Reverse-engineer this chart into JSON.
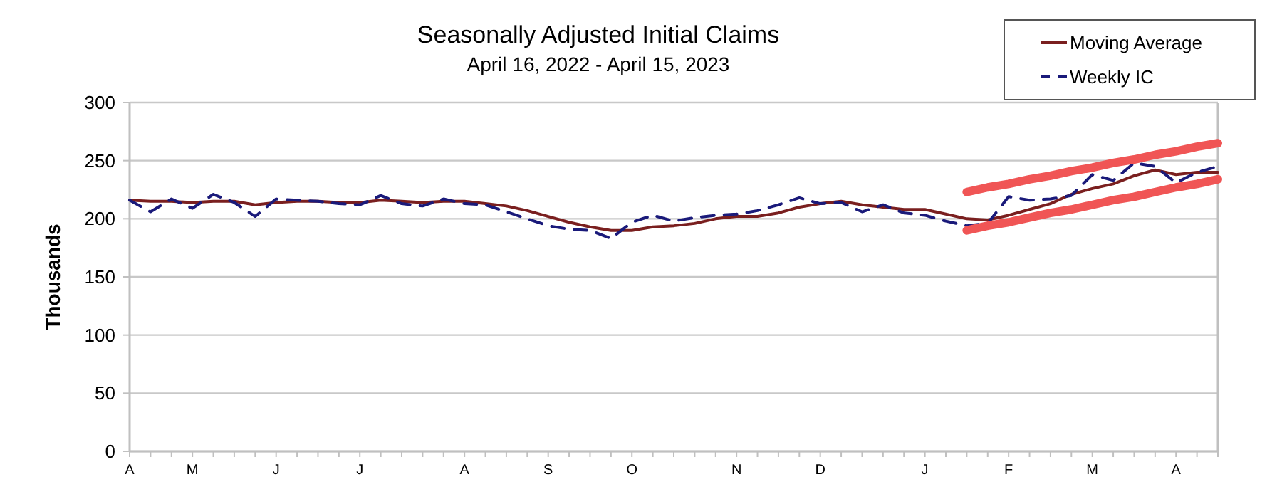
{
  "chart_data": {
    "type": "line",
    "title": "Seasonally Adjusted Initial Claims",
    "subtitle": "April 16, 2022 - April 15, 2023",
    "ylabel": "Thousands",
    "categories": [
      "A",
      null,
      null,
      "M",
      null,
      null,
      null,
      "J",
      null,
      null,
      null,
      "J",
      null,
      null,
      null,
      null,
      "A",
      null,
      null,
      null,
      "S",
      null,
      null,
      null,
      "O",
      null,
      null,
      null,
      null,
      "N",
      null,
      null,
      null,
      "D",
      null,
      null,
      null,
      null,
      "J",
      null,
      null,
      null,
      "F",
      null,
      null,
      null,
      "M",
      null,
      null,
      null,
      "A",
      null,
      null
    ],
    "ylim": [
      0,
      300
    ],
    "yticks": [
      0,
      50,
      100,
      150,
      200,
      250,
      300
    ],
    "grid": "y",
    "legend": "top right",
    "series": [
      {
        "name": "Moving Average",
        "color": "#7a1f1f",
        "line_style": "solid",
        "values": [
          216,
          215,
          215,
          214,
          215,
          215,
          212,
          214,
          215,
          215,
          214,
          214,
          216,
          215,
          214,
          215,
          215,
          213,
          211,
          207,
          202,
          197,
          193,
          190,
          190,
          193,
          194,
          196,
          200,
          202,
          202,
          205,
          210,
          213,
          215,
          212,
          210,
          208,
          208,
          204,
          200,
          199,
          203,
          208,
          213,
          221,
          226,
          230,
          237,
          242,
          238,
          240,
          240
        ]
      },
      {
        "name": "Weekly IC",
        "color": "#1a1a7a",
        "line_style": "dashed",
        "values": [
          216,
          206,
          217,
          209,
          221,
          214,
          202,
          217,
          216,
          215,
          213,
          212,
          220,
          213,
          211,
          217,
          213,
          212,
          206,
          200,
          194,
          191,
          190,
          183,
          197,
          203,
          198,
          201,
          203,
          204,
          207,
          212,
          218,
          213,
          214,
          206,
          212,
          205,
          203,
          198,
          194,
          196,
          219,
          216,
          217,
          220,
          238,
          233,
          248,
          245,
          231,
          240,
          245
        ]
      },
      {
        "color": "#f05555",
        "line_style": "solid",
        "values": [
          null,
          null,
          null,
          null,
          null,
          null,
          null,
          null,
          null,
          null,
          null,
          null,
          null,
          null,
          null,
          null,
          null,
          null,
          null,
          null,
          null,
          null,
          null,
          null,
          null,
          null,
          null,
          null,
          null,
          null,
          null,
          null,
          null,
          null,
          null,
          null,
          null,
          null,
          null,
          null,
          223,
          227,
          230,
          234,
          237,
          241,
          244,
          248,
          251,
          255,
          258,
          262,
          265
        ]
      },
      {
        "color": "#f05555",
        "line_style": "solid",
        "values": [
          null,
          null,
          null,
          null,
          null,
          null,
          null,
          null,
          null,
          null,
          null,
          null,
          null,
          null,
          null,
          null,
          null,
          null,
          null,
          null,
          null,
          null,
          null,
          null,
          null,
          null,
          null,
          null,
          null,
          null,
          null,
          null,
          null,
          null,
          null,
          null,
          null,
          null,
          null,
          null,
          190,
          194,
          197,
          201,
          205,
          208,
          212,
          216,
          219,
          223,
          227,
          230,
          234
        ]
      }
    ]
  }
}
